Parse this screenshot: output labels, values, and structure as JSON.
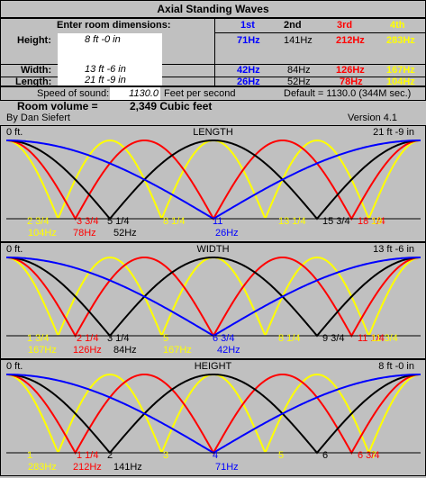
{
  "title": "Axial Standing Waves",
  "colors": {
    "first": "#0000ff",
    "second": "#000000",
    "third": "#ff0000",
    "fourth": "#ffff00",
    "bg": "#c0c0c0"
  },
  "inputs": {
    "heading": "Enter room dimensions:",
    "height_label": "Height:",
    "height_value": "8 ft   -0 in",
    "width_label": "Width:",
    "width_value": "13 ft   -6 in",
    "length_label": "Length:",
    "length_value": "21 ft   -9 in"
  },
  "modes": {
    "headers": [
      "1st",
      "2nd",
      "3rd",
      "4th"
    ],
    "height": [
      "71Hz",
      "141Hz",
      "212Hz",
      "283Hz"
    ],
    "width": [
      "42Hz",
      "84Hz",
      "126Hz",
      "167Hz"
    ],
    "length": [
      "26Hz",
      "52Hz",
      "78Hz",
      "104Hz"
    ]
  },
  "sound": {
    "label": "Speed of sound:",
    "value": "1130.0",
    "unit": "Feet per second",
    "default": "Default = 1130.0 (344M sec.)"
  },
  "volume": {
    "label": "Room volume =",
    "value": "2,349 Cubic feet"
  },
  "author": "By Dan Siefert",
  "version": "Version 4.1",
  "panels": [
    {
      "title": "LENGTH",
      "start": "0 ft.",
      "end": "21 ft  -9 in",
      "ticks": [
        {
          "t": "2 3/4",
          "c": "yellow"
        },
        {
          "t": "3 3/4",
          "c": "red"
        },
        {
          "t": "5 1/4",
          "c": "black"
        },
        {
          "t": "8 1/4",
          "c": "yellow"
        },
        {
          "t": "11",
          "c": "blue"
        },
        {
          "t": "13 1/4",
          "c": "yellow"
        },
        {
          "t": "15 3/4",
          "c": "black"
        },
        {
          "t": "18 1/4",
          "c": "red"
        },
        {
          "t": "19",
          "c": "yellow"
        }
      ],
      "freqs": [
        {
          "t": "104Hz",
          "c": "yellow"
        },
        {
          "t": "78Hz",
          "c": "red"
        },
        {
          "t": "52Hz",
          "c": "black"
        },
        {
          "t": "26Hz",
          "c": "blue"
        }
      ]
    },
    {
      "title": "WIDTH",
      "start": "0 ft.",
      "end": "13 ft  -6 in",
      "ticks": [
        {
          "t": "1 3/4",
          "c": "yellow"
        },
        {
          "t": "2 1/4",
          "c": "red"
        },
        {
          "t": "3 1/4",
          "c": "black"
        },
        {
          "t": "5",
          "c": "yellow"
        },
        {
          "t": "6 3/4",
          "c": "blue"
        },
        {
          "t": "8 1/4",
          "c": "yellow"
        },
        {
          "t": "9 3/4",
          "c": "black"
        },
        {
          "t": "11 1/4",
          "c": "red"
        },
        {
          "t": "11 3/4",
          "c": "yellow"
        }
      ],
      "freqs": [
        {
          "t": "167Hz",
          "c": "yellow"
        },
        {
          "t": "126Hz",
          "c": "red"
        },
        {
          "t": "84Hz",
          "c": "black"
        },
        {
          "t": "167Hz",
          "c": "yellow"
        },
        {
          "t": "42Hz",
          "c": "blue"
        }
      ]
    },
    {
      "title": "HEIGHT",
      "start": "0 ft.",
      "end": "8 ft  -0 in",
      "ticks": [
        {
          "t": "1",
          "c": "yellow"
        },
        {
          "t": "1 1/4",
          "c": "red"
        },
        {
          "t": "2",
          "c": "black"
        },
        {
          "t": "3",
          "c": "yellow"
        },
        {
          "t": "4",
          "c": "blue"
        },
        {
          "t": "5",
          "c": "yellow"
        },
        {
          "t": "6",
          "c": "black"
        },
        {
          "t": "6 3/4",
          "c": "red"
        },
        {
          "t": "7",
          "c": "yellow"
        }
      ],
      "freqs": [
        {
          "t": "283Hz",
          "c": "yellow"
        },
        {
          "t": "212Hz",
          "c": "red"
        },
        {
          "t": "141Hz",
          "c": "black"
        },
        {
          "t": "71Hz",
          "c": "blue"
        }
      ]
    }
  ]
}
